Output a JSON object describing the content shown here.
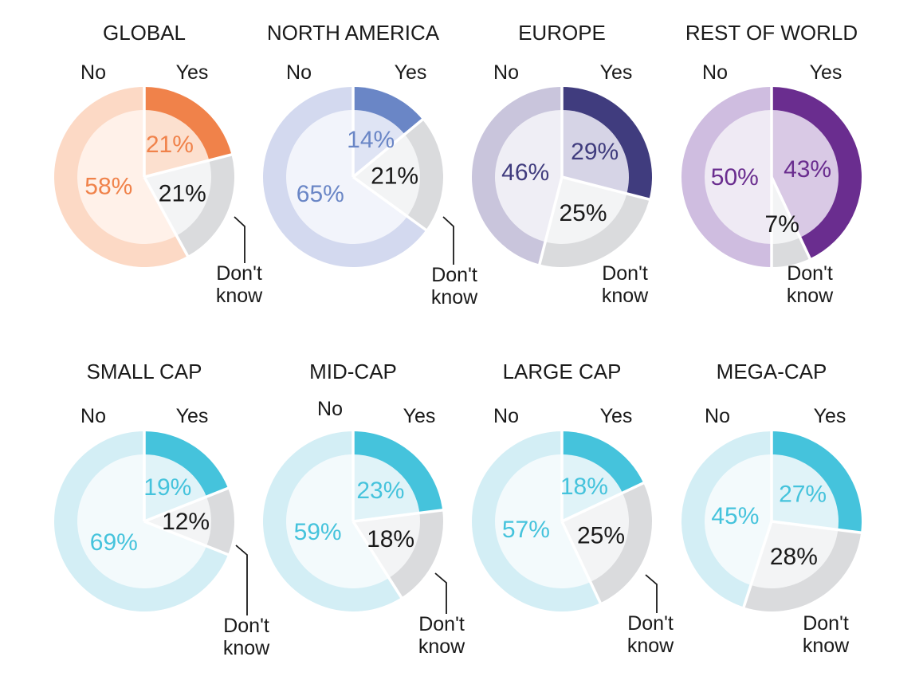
{
  "labels": {
    "yes": "Yes",
    "no": "No",
    "dk_line1": "Don't",
    "dk_line2": "know"
  },
  "colors": {
    "gray_outer": "#dadbdd",
    "gray_inner": "#f3f4f5",
    "dk_text": "#1a1a1a"
  },
  "chart_data": [
    {
      "type": "pie",
      "title": "GLOBAL",
      "categories": [
        "Yes",
        "Don't know",
        "No"
      ],
      "values": [
        21,
        21,
        58
      ],
      "value_labels": [
        "21%",
        "21%",
        "58%"
      ],
      "colors": {
        "yes_outer": "#f0824a",
        "yes_inner": "#fce0cf",
        "no_outer": "#fcd9c5",
        "no_inner": "#fff1e9",
        "yes_text": "#f0824a",
        "no_text": "#f0824a"
      }
    },
    {
      "type": "pie",
      "title": "NORTH AMERICA",
      "categories": [
        "Yes",
        "Don't know",
        "No"
      ],
      "values": [
        14,
        21,
        65
      ],
      "value_labels": [
        "14%",
        "21%",
        "65%"
      ],
      "colors": {
        "yes_outer": "#6a86c6",
        "yes_inner": "#dfe4f4",
        "no_outer": "#d3d9ef",
        "no_inner": "#f2f4fb",
        "yes_text": "#6a86c6",
        "no_text": "#6a86c6"
      }
    },
    {
      "type": "pie",
      "title": "EUROPE",
      "categories": [
        "Yes",
        "Don't know",
        "No"
      ],
      "values": [
        29,
        25,
        46
      ],
      "value_labels": [
        "29%",
        "25%",
        "46%"
      ],
      "colors": {
        "yes_outer": "#403c7e",
        "yes_inner": "#d6d4e6",
        "no_outer": "#c9c5dc",
        "no_inner": "#efeef5",
        "yes_text": "#403c7e",
        "no_text": "#403c7e"
      }
    },
    {
      "type": "pie",
      "title": "REST OF WORLD",
      "categories": [
        "Yes",
        "Don't know",
        "No"
      ],
      "values": [
        43,
        7,
        50
      ],
      "value_labels": [
        "43%",
        "7%",
        "50%"
      ],
      "colors": {
        "yes_outer": "#6a2d8f",
        "yes_inner": "#d9c9e5",
        "no_outer": "#cfbde0",
        "no_inner": "#efeaf4",
        "yes_text": "#6a2d8f",
        "no_text": "#6a2d8f"
      }
    },
    {
      "type": "pie",
      "title": "SMALL CAP",
      "categories": [
        "Yes",
        "Don't know",
        "No"
      ],
      "values": [
        19,
        12,
        69
      ],
      "value_labels": [
        "19%",
        "12%",
        "69%"
      ],
      "colors": {
        "yes_outer": "#45c3dc",
        "yes_inner": "#e0f3f8",
        "no_outer": "#d3eef5",
        "no_inner": "#f3fafc",
        "yes_text": "#45c3dc",
        "no_text": "#45c3dc"
      }
    },
    {
      "type": "pie",
      "title": "MID-CAP",
      "categories": [
        "Yes",
        "Don't know",
        "No"
      ],
      "values": [
        23,
        18,
        59
      ],
      "value_labels": [
        "23%",
        "18%",
        "59%"
      ],
      "colors": {
        "yes_outer": "#45c3dc",
        "yes_inner": "#e0f3f8",
        "no_outer": "#d3eef5",
        "no_inner": "#f3fafc",
        "yes_text": "#45c3dc",
        "no_text": "#45c3dc"
      }
    },
    {
      "type": "pie",
      "title": "LARGE CAP",
      "categories": [
        "Yes",
        "Don't know",
        "No"
      ],
      "values": [
        18,
        25,
        57
      ],
      "value_labels": [
        "18%",
        "25%",
        "57%"
      ],
      "colors": {
        "yes_outer": "#45c3dc",
        "yes_inner": "#e0f3f8",
        "no_outer": "#d3eef5",
        "no_inner": "#f3fafc",
        "yes_text": "#45c3dc",
        "no_text": "#45c3dc"
      }
    },
    {
      "type": "pie",
      "title": "MEGA-CAP",
      "categories": [
        "Yes",
        "Don't know",
        "No"
      ],
      "values": [
        27,
        28,
        45
      ],
      "value_labels": [
        "27%",
        "28%",
        "45%"
      ],
      "colors": {
        "yes_outer": "#45c3dc",
        "yes_inner": "#e0f3f8",
        "no_outer": "#d3eef5",
        "no_inner": "#f3fafc",
        "yes_text": "#45c3dc",
        "no_text": "#45c3dc"
      }
    }
  ]
}
